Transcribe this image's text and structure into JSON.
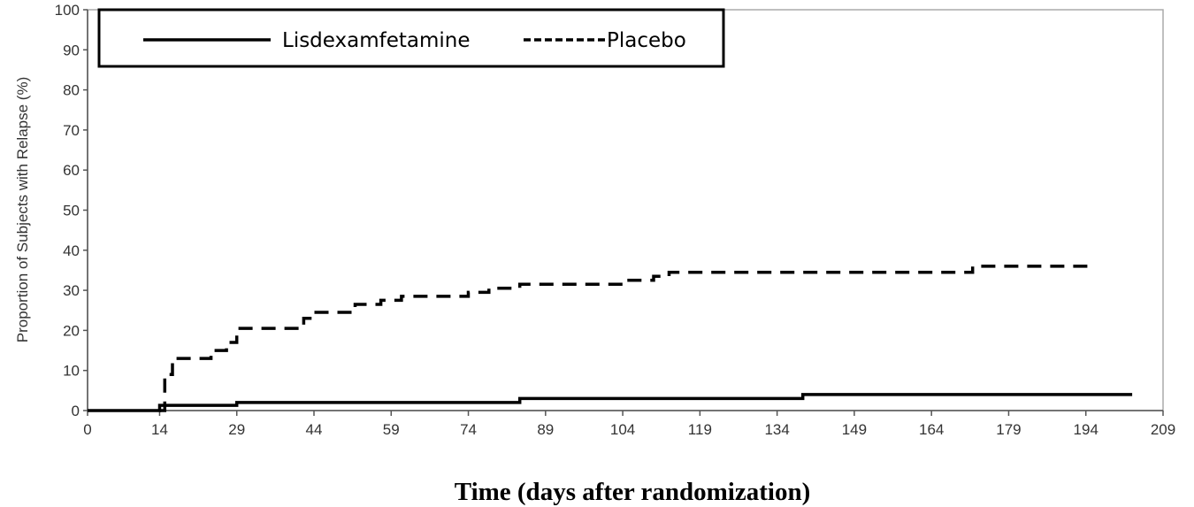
{
  "chart_data": {
    "type": "line",
    "title": "",
    "xlabel": "Time (days after randomization)",
    "ylabel": "Proportion of Subjects with Relapse (%)",
    "xlim": [
      0,
      209
    ],
    "ylim": [
      0,
      100
    ],
    "x_ticks": [
      "0",
      "14",
      "29",
      "44",
      "59",
      "74",
      "89",
      "104",
      "119",
      "134",
      "149",
      "164",
      "179",
      "194",
      "209"
    ],
    "y_ticks": [
      "0",
      "10",
      "20",
      "30",
      "40",
      "50",
      "60",
      "70",
      "80",
      "90",
      "100"
    ],
    "grid": false,
    "legend_position": "top-left",
    "series": [
      {
        "name": "Lisdexamfetamine",
        "style": "solid",
        "color": "#000000",
        "points": [
          [
            0,
            0
          ],
          [
            14,
            0
          ],
          [
            14,
            1.3
          ],
          [
            29,
            1.3
          ],
          [
            29,
            2
          ],
          [
            84,
            2
          ],
          [
            84,
            3
          ],
          [
            139,
            3
          ],
          [
            139,
            4
          ],
          [
            203,
            4
          ]
        ]
      },
      {
        "name": "Placebo",
        "style": "dashed",
        "color": "#000000",
        "points": [
          [
            14,
            0
          ],
          [
            15,
            0
          ],
          [
            15,
            9
          ],
          [
            16.5,
            9
          ],
          [
            16.5,
            13
          ],
          [
            24,
            13
          ],
          [
            24,
            15
          ],
          [
            27,
            15
          ],
          [
            27,
            17
          ],
          [
            29,
            17
          ],
          [
            29,
            20.5
          ],
          [
            42,
            20.5
          ],
          [
            42,
            23
          ],
          [
            44,
            23
          ],
          [
            44,
            24.5
          ],
          [
            52,
            24.5
          ],
          [
            52,
            26.5
          ],
          [
            57,
            26.5
          ],
          [
            57,
            27.5
          ],
          [
            61,
            27.5
          ],
          [
            61,
            28.5
          ],
          [
            74,
            28.5
          ],
          [
            74,
            29.5
          ],
          [
            78,
            29.5
          ],
          [
            78,
            30.5
          ],
          [
            84,
            30.5
          ],
          [
            84,
            31.5
          ],
          [
            104,
            31.5
          ],
          [
            104,
            32.5
          ],
          [
            110,
            32.5
          ],
          [
            110,
            33.5
          ],
          [
            113,
            33.5
          ],
          [
            113,
            34.5
          ],
          [
            172,
            34.5
          ],
          [
            172,
            36
          ],
          [
            196,
            36
          ]
        ]
      }
    ]
  }
}
